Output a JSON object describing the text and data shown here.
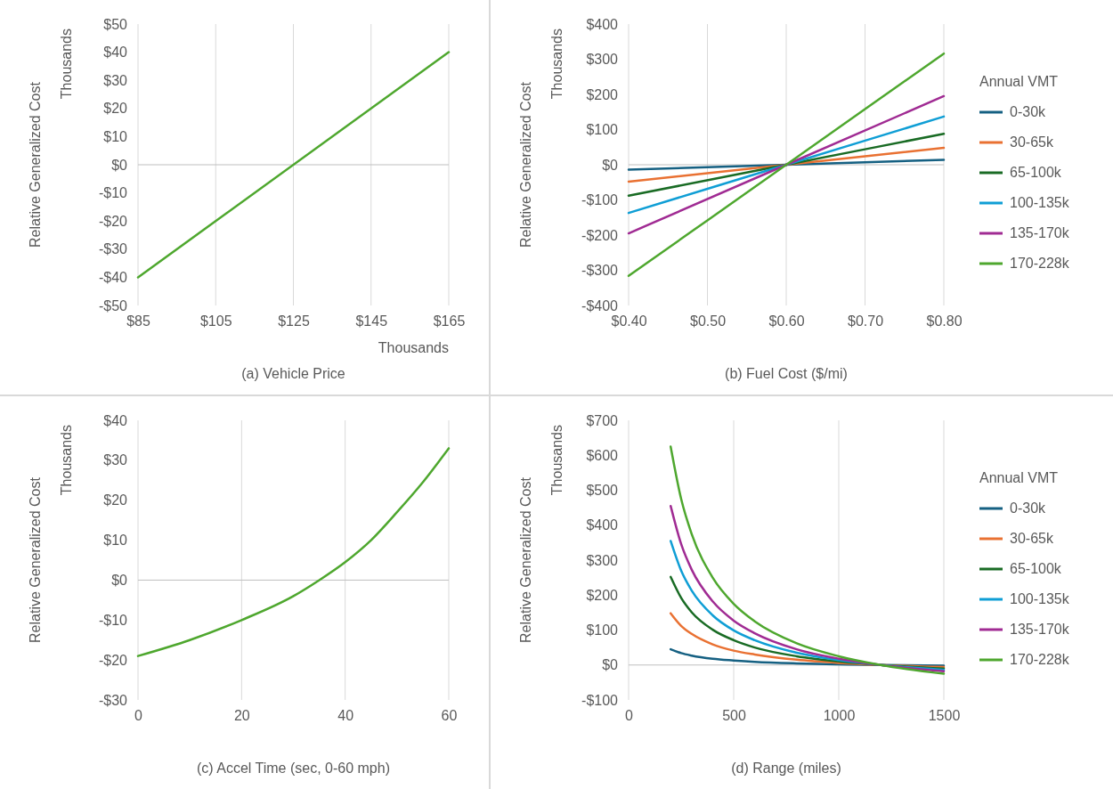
{
  "chart_data": [
    {
      "type": "line",
      "xlabel": "(a) Vehicle Price",
      "ylabel": "Relative Generalized Cost",
      "annotations": [
        "Thousands",
        "Thousands"
      ],
      "grid": "x",
      "marker": "none",
      "xlim": [
        85,
        165
      ],
      "xticks": [
        {
          "value": 85,
          "label": "$85"
        },
        {
          "value": 105,
          "label": "$105"
        },
        {
          "value": 125,
          "label": "$125"
        },
        {
          "value": 145,
          "label": "$145"
        },
        {
          "value": 165,
          "label": "$165"
        }
      ],
      "ylim": [
        -50,
        50
      ],
      "yticks": [
        {
          "value": -50,
          "label": "-$50"
        },
        {
          "value": -40,
          "label": "-$40"
        },
        {
          "value": -30,
          "label": "-$30"
        },
        {
          "value": -20,
          "label": "-$20"
        },
        {
          "value": -10,
          "label": "-$10"
        },
        {
          "value": 0,
          "label": "$0"
        },
        {
          "value": 10,
          "label": "$10"
        },
        {
          "value": 20,
          "label": "$20"
        },
        {
          "value": 30,
          "label": "$30"
        },
        {
          "value": 40,
          "label": "$40"
        },
        {
          "value": 50,
          "label": "$50"
        }
      ],
      "x": [
        85,
        165
      ],
      "series": [
        {
          "color": "#4ea72e",
          "values": [
            -40,
            40
          ]
        }
      ]
    },
    {
      "type": "line",
      "xlabel": "(b) Fuel Cost ($/mi)",
      "ylabel": "Relative Generalized Cost",
      "annotations": [
        "Thousands"
      ],
      "grid": "x",
      "marker": "none",
      "legend": "right",
      "legend_title": "Annual VMT",
      "xlim": [
        0.4,
        0.8
      ],
      "xticks": [
        {
          "value": 0.4,
          "label": "$0.40"
        },
        {
          "value": 0.5,
          "label": "$0.50"
        },
        {
          "value": 0.6,
          "label": "$0.60"
        },
        {
          "value": 0.7,
          "label": "$0.70"
        },
        {
          "value": 0.8,
          "label": "$0.80"
        }
      ],
      "ylim": [
        -400,
        400
      ],
      "yticks": [
        {
          "value": -400,
          "label": "-$400"
        },
        {
          "value": -300,
          "label": "-$300"
        },
        {
          "value": -200,
          "label": "-$200"
        },
        {
          "value": -100,
          "label": "-$100"
        },
        {
          "value": 0,
          "label": "$0"
        },
        {
          "value": 100,
          "label": "$100"
        },
        {
          "value": 200,
          "label": "$200"
        },
        {
          "value": 300,
          "label": "$300"
        },
        {
          "value": 400,
          "label": "$400"
        }
      ],
      "x": [
        0.4,
        0.6,
        0.8
      ],
      "series": [
        {
          "name": "0-30k",
          "color": "#156082",
          "values": [
            -14,
            0,
            14
          ]
        },
        {
          "name": "30-65k",
          "color": "#e97132",
          "values": [
            -48,
            0,
            48
          ]
        },
        {
          "name": "65-100k",
          "color": "#196b24",
          "values": [
            -88,
            0,
            88
          ]
        },
        {
          "name": "100-135k",
          "color": "#0f9ed5",
          "values": [
            -137,
            0,
            137
          ]
        },
        {
          "name": "135-170k",
          "color": "#a02b93",
          "values": [
            -195,
            0,
            195
          ]
        },
        {
          "name": "170-228k",
          "color": "#4ea72e",
          "values": [
            -316,
            0,
            316
          ]
        }
      ]
    },
    {
      "type": "line",
      "xlabel": "(c) Accel Time (sec, 0-60 mph)",
      "ylabel": "Relative Generalized Cost",
      "annotations": [
        "Thousands"
      ],
      "grid": "x",
      "marker": "none",
      "xlim": [
        0,
        60
      ],
      "xticks": [
        0,
        20,
        40,
        60
      ],
      "ylim": [
        -30,
        40
      ],
      "yticks": [
        {
          "value": -30,
          "label": "-$30"
        },
        {
          "value": -20,
          "label": "-$20"
        },
        {
          "value": -10,
          "label": "-$10"
        },
        {
          "value": 0,
          "label": "$0"
        },
        {
          "value": 10,
          "label": "$10"
        },
        {
          "value": 20,
          "label": "$20"
        },
        {
          "value": 30,
          "label": "$30"
        },
        {
          "value": 40,
          "label": "$40"
        }
      ],
      "x": [
        0,
        10,
        20,
        30,
        35,
        40,
        45,
        50,
        55,
        60
      ],
      "series": [
        {
          "color": "#4ea72e",
          "values": [
            -19,
            -15,
            -10,
            -4,
            0,
            4.5,
            10,
            17,
            24.5,
            33
          ]
        }
      ]
    },
    {
      "type": "line",
      "xlabel": "(d) Range (miles)",
      "ylabel": "Relative Generalized Cost",
      "annotations": [
        "Thousands"
      ],
      "grid": "x",
      "marker": "none",
      "legend": "right",
      "legend_title": "Annual VMT",
      "xlim": [
        0,
        1500
      ],
      "xticks": [
        0,
        500,
        1000,
        1500
      ],
      "ylim": [
        -100,
        700
      ],
      "yticks": [
        {
          "value": -100,
          "label": "-$100"
        },
        {
          "value": 0,
          "label": "$0"
        },
        {
          "value": 100,
          "label": "$100"
        },
        {
          "value": 200,
          "label": "$200"
        },
        {
          "value": 300,
          "label": "$300"
        },
        {
          "value": 400,
          "label": "$400"
        },
        {
          "value": 500,
          "label": "$500"
        },
        {
          "value": 600,
          "label": "$600"
        },
        {
          "value": 700,
          "label": "$700"
        }
      ],
      "x": [
        200,
        250,
        300,
        400,
        500,
        600,
        800,
        1000,
        1200,
        1500
      ],
      "series": [
        {
          "name": "0-30k",
          "color": "#156082",
          "values": [
            45,
            34,
            27,
            18,
            13,
            9,
            4.5,
            2,
            0,
            -2
          ]
        },
        {
          "name": "30-65k",
          "color": "#e97132",
          "values": [
            148,
            112,
            89,
            59,
            41,
            30,
            15,
            6,
            0,
            -6
          ]
        },
        {
          "name": "65-100k",
          "color": "#196b24",
          "values": [
            252,
            192,
            151,
            101,
            71,
            50,
            25,
            10,
            0,
            -10
          ]
        },
        {
          "name": "100-135k",
          "color": "#0f9ed5",
          "values": [
            355,
            270,
            213,
            142,
            99,
            71,
            35,
            14,
            0,
            -14
          ]
        },
        {
          "name": "135-170k",
          "color": "#a02b93",
          "values": [
            455,
            346,
            273,
            182,
            127,
            91,
            45,
            18,
            0,
            -18
          ]
        },
        {
          "name": "170-228k",
          "color": "#4ea72e",
          "values": [
            625,
            475,
            375,
            250,
            175,
            125,
            62,
            25,
            0,
            -25
          ]
        }
      ]
    }
  ]
}
